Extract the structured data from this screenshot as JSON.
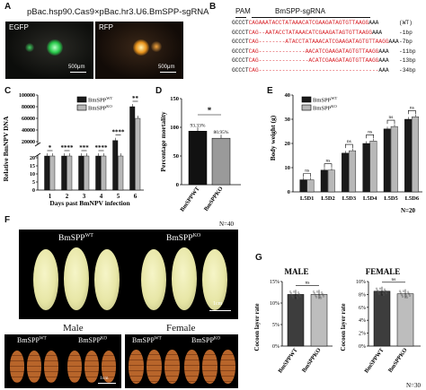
{
  "panels": {
    "A": {
      "label": "A",
      "title": "pBac.hsp90.Cas9×pBac.hr3.U6.BmSPP-sgRNA",
      "left_caption": "EGFP",
      "right_caption": "RFP",
      "scalebar": "500μm",
      "colors": {
        "egfp": "#27c94a",
        "rfp": "#e8921a"
      }
    },
    "B": {
      "label": "B",
      "pam_label": "PAM",
      "guide_label": "BmSPP-sgRNA",
      "rows": [
        {
          "prefix": "GCCCT",
          "red": "CAGAAATACCTATAAACATCGAAGATAGTGTTAAGG",
          "suffix": "AAA",
          "tag": "(WT)"
        },
        {
          "prefix": "GCCCT",
          "red": "CAG--AATACCTATAAACATCGAAGATAGTGTTAAGG",
          "suffix": "AAA",
          "tag": "-1bp"
        },
        {
          "prefix": "GCCCT",
          "red": "CAG--------ATACCTATAAACATCGAAGATAGTGTTAAGG",
          "suffix": "AAA",
          "tag": "-7bp"
        },
        {
          "prefix": "GCCCT",
          "red": "CAG--------------AACATCGAAGATAGTGTTAAGG",
          "suffix": "AAA",
          "tag": "-11bp"
        },
        {
          "prefix": "GCCCT",
          "red": "CAG---------------ACATCGAAGATAGTGTTAAGG",
          "suffix": "AAA",
          "tag": "-13bp"
        },
        {
          "prefix": "GCCCT",
          "red": "CAG------------------------------------",
          "suffix": "AAA",
          "tag": "-34bp"
        }
      ]
    },
    "C": {
      "label": "C",
      "xlabel": "Days past BmNPV infection",
      "ylabel": "Relative BmNPV DNA",
      "legend": [
        "BmSPP",
        "BmSPP"
      ],
      "legend_sup": [
        "WT",
        "KO"
      ],
      "stars": [
        "*",
        "****",
        "***",
        "****",
        "****",
        "**"
      ]
    },
    "D": {
      "label": "D",
      "ylabel": "Percentage mortality",
      "star": "*",
      "value_labels": [
        "93.33%",
        "80.95%"
      ],
      "n_note": "N=40"
    },
    "E": {
      "label": "E",
      "ylabel": "Body weight (g)",
      "legend": [
        "BmSPP",
        "BmSPP"
      ],
      "legend_sup": [
        "WT",
        "KO"
      ],
      "ns": [
        "ns",
        "ns",
        "ns",
        "ns",
        "ns",
        "ns"
      ],
      "n_note": "N=20"
    },
    "F": {
      "label": "F",
      "wt_label": "BmSPP",
      "wt_sup": "WT",
      "ko_label": "BmSPP",
      "ko_sup": "KO",
      "scale_top": "1cm",
      "male": "Male",
      "female": "Female",
      "scale_bottom": "1cm",
      "colors": {
        "cocoon": "#e7e6a6",
        "pupa": "#b8652a"
      }
    },
    "G": {
      "label": "G",
      "male_title": "MALE",
      "female_title": "FEMALE",
      "ylabel": "Cocoon layer rate",
      "ns": "ns",
      "n_note": "N=30",
      "colors": {
        "wt": "#3d3d3d",
        "ko": "#bdbdbd"
      }
    }
  },
  "chart_data": [
    {
      "type": "bar",
      "panel": "C",
      "categories": [
        "1",
        "2",
        "3",
        "4",
        "5",
        "6"
      ],
      "series": [
        {
          "name": "BmSPP WT",
          "values": [
            900,
            6000,
            14000,
            18000,
            22000,
            80000
          ]
        },
        {
          "name": "BmSPP KO",
          "values": [
            300,
            1800,
            3000,
            5000,
            8000,
            60000
          ]
        }
      ],
      "ylabel": "Relative BmNPV DNA",
      "xlabel": "Days past BmNPV infection",
      "yticks_upper": [
        "20000",
        "40000",
        "60000",
        "80000",
        "100000"
      ],
      "yticks_lower": [
        "0",
        "5",
        "10",
        "15",
        "20"
      ],
      "ylim": [
        0,
        100000
      ]
    },
    {
      "type": "bar",
      "panel": "D",
      "categories": [
        "BmSPP WT",
        "BmSPP KO"
      ],
      "values": [
        93.33,
        80.95
      ],
      "ylabel": "Percentage mortality",
      "yticks": [
        "0",
        "50",
        "100",
        "150"
      ],
      "ylim": [
        0,
        150
      ]
    },
    {
      "type": "bar",
      "panel": "E",
      "categories": [
        "L5D1",
        "L5D2",
        "L5D3",
        "L5D4",
        "L5D5",
        "L5D6"
      ],
      "series": [
        {
          "name": "BmSPP WT",
          "values": [
            5,
            9,
            16,
            20,
            26,
            30
          ]
        },
        {
          "name": "BmSPP KO",
          "values": [
            5,
            9,
            17,
            21,
            27,
            31
          ]
        }
      ],
      "ylabel": "Body weight (g)",
      "yticks": [
        "0",
        "10",
        "20",
        "30",
        "40"
      ],
      "ylim": [
        0,
        40
      ]
    },
    {
      "type": "bar",
      "panel": "G",
      "title": "MALE",
      "categories": [
        "BmSPP WT",
        "BmSPP KO"
      ],
      "values": [
        12,
        12
      ],
      "ylabel": "Cocoon layer rate",
      "yticks": [
        "0%",
        "5%",
        "10%",
        "15%"
      ],
      "ylim": [
        0,
        15
      ]
    },
    {
      "type": "bar",
      "panel": "G",
      "title": "FEMALE",
      "categories": [
        "BmSPP WT",
        "BmSPP KO"
      ],
      "values": [
        8.5,
        8.1
      ],
      "ylabel": "Cocoon layer rate",
      "yticks": [
        "0%",
        "2%",
        "4%",
        "6%",
        "8%",
        "10%"
      ],
      "ylim": [
        0,
        10
      ]
    }
  ]
}
